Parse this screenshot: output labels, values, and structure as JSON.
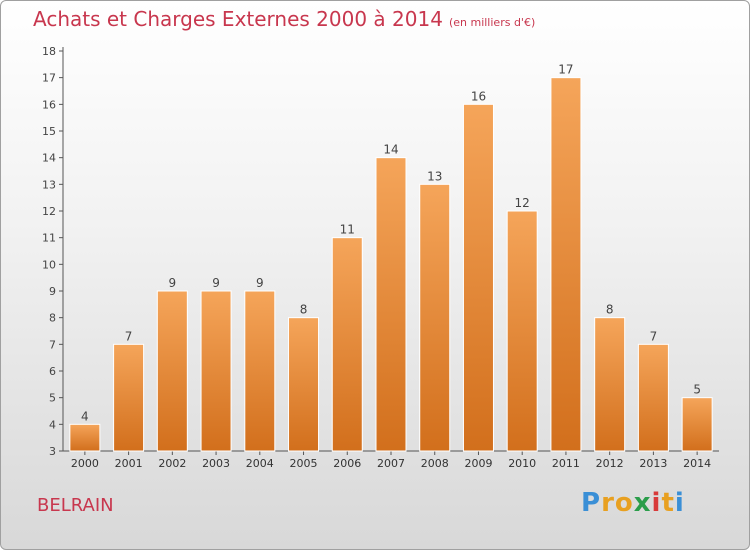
{
  "header": {
    "title": "Achats et Charges Externes 2000 à 2014",
    "subtitle": "(en milliers d'€)"
  },
  "commune": "BELRAIN",
  "brand": {
    "letters": [
      "P",
      "r",
      "o",
      "x",
      "i",
      "t",
      "i"
    ],
    "colors": [
      "#3a8fd6",
      "#e8a020",
      "#e8a020",
      "#2a9d4a",
      "#d83a3a",
      "#e8a020",
      "#3a8fd6"
    ]
  },
  "colors": {
    "bar_top": "#f5a55a",
    "bar_bottom": "#d26f1c",
    "axis": "#555555",
    "title": "#c8374e"
  },
  "chart_data": {
    "type": "bar",
    "categories": [
      "2000",
      "2001",
      "2002",
      "2003",
      "2004",
      "2005",
      "2006",
      "2007",
      "2008",
      "2009",
      "2010",
      "2011",
      "2012",
      "2013",
      "2014"
    ],
    "values": [
      4,
      7,
      9,
      9,
      9,
      8,
      11,
      14,
      13,
      16,
      12,
      17,
      8,
      7,
      5
    ],
    "ylim": [
      3,
      18
    ],
    "yticks": [
      3,
      4,
      5,
      6,
      7,
      8,
      9,
      10,
      11,
      12,
      13,
      14,
      15,
      16,
      17,
      18
    ],
    "grid": false
  }
}
